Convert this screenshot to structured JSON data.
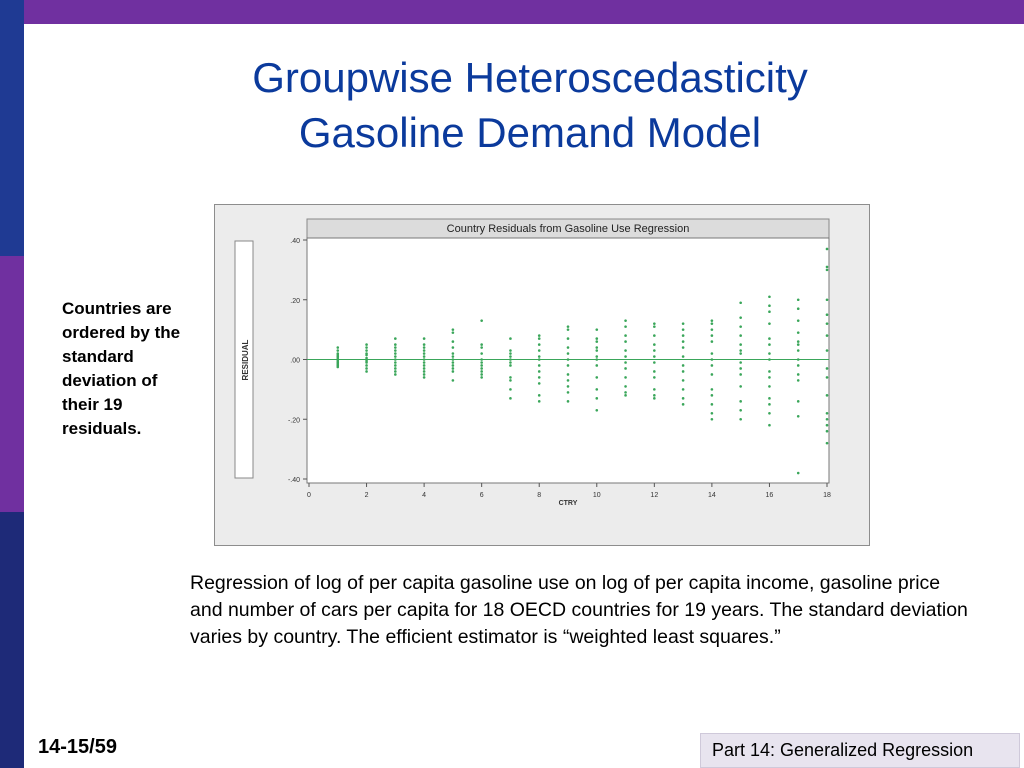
{
  "title": {
    "line1": "Groupwise Heteroscedasticity",
    "line2": "Gasoline Demand Model"
  },
  "side_note": "Countries are ordered by the standard deviation of their 19 residuals.",
  "caption": "Regression of log of per capita gasoline use on log of per capita income, gasoline price and number of cars per capita for 18 OECD countries for 19 years. The standard deviation varies by country.  The efficient estimator is “weighted least squares.”",
  "slide_number": "14-15/59",
  "footer": "Part 14: Generalized Regression",
  "colors": {
    "top_bar": "#7030a0",
    "left_bar_1": "#1f3a93",
    "left_bar_2": "#7030a0",
    "left_bar_3": "#1e2a78",
    "title": "#0b3a9c",
    "points": "#3aa65a",
    "zero_line": "#3aa65a"
  },
  "chart_data": {
    "type": "scatter",
    "title": "Country Residuals from Gasoline Use Regression",
    "xlabel": "CTRY",
    "ylabel": "RESIDUAL",
    "xlim": [
      0,
      18
    ],
    "ylim": [
      -0.4,
      0.4
    ],
    "x_ticks": [
      "0",
      "2",
      "4",
      "6",
      "8",
      "10",
      "12",
      "14",
      "16",
      "18"
    ],
    "y_ticks": [
      ".40",
      ".20",
      ".00",
      "-.20",
      "-.40"
    ],
    "zero_line": true,
    "grid": false,
    "series": [
      {
        "points": [
          [
            1,
            0.04
          ],
          [
            1,
            0.03
          ],
          [
            1,
            0.02
          ],
          [
            1,
            0.015
          ],
          [
            1,
            0.01
          ],
          [
            1,
            0.005
          ],
          [
            1,
            0.0
          ],
          [
            1,
            -0.005
          ],
          [
            1,
            -0.01
          ],
          [
            1,
            -0.015
          ],
          [
            1,
            -0.02
          ],
          [
            1,
            -0.025
          ],
          [
            2,
            0.05
          ],
          [
            2,
            0.04
          ],
          [
            2,
            0.03
          ],
          [
            2,
            0.02
          ],
          [
            2,
            0.015
          ],
          [
            2,
            0.005
          ],
          [
            2,
            0.0
          ],
          [
            2,
            -0.005
          ],
          [
            2,
            -0.01
          ],
          [
            2,
            -0.02
          ],
          [
            2,
            -0.03
          ],
          [
            2,
            -0.04
          ],
          [
            3,
            0.07
          ],
          [
            3,
            0.05
          ],
          [
            3,
            0.04
          ],
          [
            3,
            0.03
          ],
          [
            3,
            0.02
          ],
          [
            3,
            0.01
          ],
          [
            3,
            0.0
          ],
          [
            3,
            -0.01
          ],
          [
            3,
            -0.02
          ],
          [
            3,
            -0.03
          ],
          [
            3,
            -0.04
          ],
          [
            3,
            -0.05
          ],
          [
            4,
            0.07
          ],
          [
            4,
            0.05
          ],
          [
            4,
            0.04
          ],
          [
            4,
            0.03
          ],
          [
            4,
            0.02
          ],
          [
            4,
            0.01
          ],
          [
            4,
            0.0
          ],
          [
            4,
            -0.01
          ],
          [
            4,
            -0.02
          ],
          [
            4,
            -0.03
          ],
          [
            4,
            -0.04
          ],
          [
            4,
            -0.05
          ],
          [
            4,
            -0.06
          ],
          [
            5,
            0.1
          ],
          [
            5,
            0.09
          ],
          [
            5,
            0.06
          ],
          [
            5,
            0.04
          ],
          [
            5,
            0.02
          ],
          [
            5,
            0.01
          ],
          [
            5,
            0.0
          ],
          [
            5,
            -0.01
          ],
          [
            5,
            -0.02
          ],
          [
            5,
            -0.03
          ],
          [
            5,
            -0.04
          ],
          [
            5,
            -0.07
          ],
          [
            6,
            0.13
          ],
          [
            6,
            0.05
          ],
          [
            6,
            0.04
          ],
          [
            6,
            0.02
          ],
          [
            6,
            0.0
          ],
          [
            6,
            -0.01
          ],
          [
            6,
            -0.02
          ],
          [
            6,
            -0.03
          ],
          [
            6,
            -0.04
          ],
          [
            6,
            -0.05
          ],
          [
            6,
            -0.06
          ],
          [
            7,
            0.07
          ],
          [
            7,
            0.03
          ],
          [
            7,
            0.02
          ],
          [
            7,
            0.01
          ],
          [
            7,
            0.0
          ],
          [
            7,
            -0.01
          ],
          [
            7,
            -0.02
          ],
          [
            7,
            -0.06
          ],
          [
            7,
            -0.07
          ],
          [
            7,
            -0.1
          ],
          [
            7,
            -0.13
          ],
          [
            8,
            0.08
          ],
          [
            8,
            0.07
          ],
          [
            8,
            0.05
          ],
          [
            8,
            0.03
          ],
          [
            8,
            0.01
          ],
          [
            8,
            0.0
          ],
          [
            8,
            -0.02
          ],
          [
            8,
            -0.04
          ],
          [
            8,
            -0.06
          ],
          [
            8,
            -0.08
          ],
          [
            8,
            -0.12
          ],
          [
            8,
            -0.14
          ],
          [
            9,
            0.11
          ],
          [
            9,
            0.1
          ],
          [
            9,
            0.07
          ],
          [
            9,
            0.04
          ],
          [
            9,
            0.02
          ],
          [
            9,
            0.0
          ],
          [
            9,
            -0.02
          ],
          [
            9,
            -0.05
          ],
          [
            9,
            -0.07
          ],
          [
            9,
            -0.09
          ],
          [
            9,
            -0.11
          ],
          [
            9,
            -0.14
          ],
          [
            10,
            0.1
          ],
          [
            10,
            0.07
          ],
          [
            10,
            0.06
          ],
          [
            10,
            0.04
          ],
          [
            10,
            0.03
          ],
          [
            10,
            0.01
          ],
          [
            10,
            0.0
          ],
          [
            10,
            -0.02
          ],
          [
            10,
            -0.06
          ],
          [
            10,
            -0.1
          ],
          [
            10,
            -0.13
          ],
          [
            10,
            -0.17
          ],
          [
            11,
            0.13
          ],
          [
            11,
            0.11
          ],
          [
            11,
            0.08
          ],
          [
            11,
            0.06
          ],
          [
            11,
            0.03
          ],
          [
            11,
            0.01
          ],
          [
            11,
            -0.01
          ],
          [
            11,
            -0.03
          ],
          [
            11,
            -0.06
          ],
          [
            11,
            -0.09
          ],
          [
            11,
            -0.11
          ],
          [
            11,
            -0.12
          ],
          [
            12,
            0.12
          ],
          [
            12,
            0.11
          ],
          [
            12,
            0.08
          ],
          [
            12,
            0.05
          ],
          [
            12,
            0.03
          ],
          [
            12,
            0.01
          ],
          [
            12,
            -0.01
          ],
          [
            12,
            -0.04
          ],
          [
            12,
            -0.06
          ],
          [
            12,
            -0.1
          ],
          [
            12,
            -0.12
          ],
          [
            12,
            -0.13
          ],
          [
            13,
            0.12
          ],
          [
            13,
            0.1
          ],
          [
            13,
            0.08
          ],
          [
            13,
            0.06
          ],
          [
            13,
            0.04
          ],
          [
            13,
            0.01
          ],
          [
            13,
            -0.02
          ],
          [
            13,
            -0.04
          ],
          [
            13,
            -0.07
          ],
          [
            13,
            -0.1
          ],
          [
            13,
            -0.13
          ],
          [
            13,
            -0.15
          ],
          [
            14,
            0.13
          ],
          [
            14,
            0.12
          ],
          [
            14,
            0.1
          ],
          [
            14,
            0.08
          ],
          [
            14,
            0.06
          ],
          [
            14,
            0.02
          ],
          [
            14,
            0.0
          ],
          [
            14,
            -0.02
          ],
          [
            14,
            -0.05
          ],
          [
            14,
            -0.1
          ],
          [
            14,
            -0.12
          ],
          [
            14,
            -0.15
          ],
          [
            14,
            -0.18
          ],
          [
            14,
            -0.2
          ],
          [
            15,
            0.19
          ],
          [
            15,
            0.14
          ],
          [
            15,
            0.11
          ],
          [
            15,
            0.08
          ],
          [
            15,
            0.05
          ],
          [
            15,
            0.03
          ],
          [
            15,
            0.02
          ],
          [
            15,
            -0.01
          ],
          [
            15,
            -0.03
          ],
          [
            15,
            -0.05
          ],
          [
            15,
            -0.09
          ],
          [
            15,
            -0.14
          ],
          [
            15,
            -0.17
          ],
          [
            15,
            -0.2
          ],
          [
            16,
            0.21
          ],
          [
            16,
            0.18
          ],
          [
            16,
            0.16
          ],
          [
            16,
            0.12
          ],
          [
            16,
            0.07
          ],
          [
            16,
            0.05
          ],
          [
            16,
            0.02
          ],
          [
            16,
            0.0
          ],
          [
            16,
            -0.04
          ],
          [
            16,
            -0.06
          ],
          [
            16,
            -0.09
          ],
          [
            16,
            -0.13
          ],
          [
            16,
            -0.15
          ],
          [
            16,
            -0.18
          ],
          [
            16,
            -0.22
          ],
          [
            17,
            0.2
          ],
          [
            17,
            0.17
          ],
          [
            17,
            0.13
          ],
          [
            17,
            0.09
          ],
          [
            17,
            0.06
          ],
          [
            17,
            0.05
          ],
          [
            17,
            0.03
          ],
          [
            17,
            0.0
          ],
          [
            17,
            -0.02
          ],
          [
            17,
            -0.05
          ],
          [
            17,
            -0.07
          ],
          [
            17,
            -0.14
          ],
          [
            17,
            -0.19
          ],
          [
            17,
            -0.38
          ],
          [
            18,
            0.37
          ],
          [
            18,
            0.31
          ],
          [
            18,
            0.3
          ],
          [
            18,
            0.2
          ],
          [
            18,
            0.15
          ],
          [
            18,
            0.12
          ],
          [
            18,
            0.08
          ],
          [
            18,
            0.03
          ],
          [
            18,
            -0.03
          ],
          [
            18,
            -0.06
          ],
          [
            18,
            -0.12
          ],
          [
            18,
            -0.18
          ],
          [
            18,
            -0.2
          ],
          [
            18,
            -0.22
          ],
          [
            18,
            -0.24
          ],
          [
            18,
            -0.28
          ]
        ]
      }
    ]
  }
}
